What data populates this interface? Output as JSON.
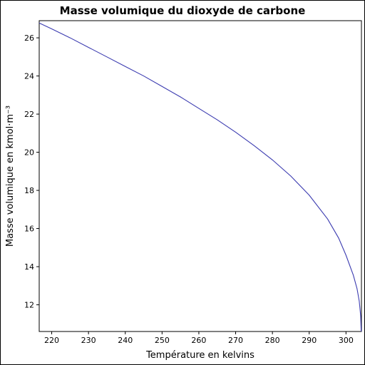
{
  "chart_data": {
    "type": "line",
    "title": "Masse volumique du dioxyde de carbone",
    "xlabel": "Température en kelvins",
    "ylabel": "Masse volumique en kmol·m⁻³",
    "xlim": [
      216.6,
      304.2
    ],
    "ylim": [
      10.6,
      26.9
    ],
    "x_ticks": [
      220,
      230,
      240,
      250,
      260,
      270,
      280,
      290,
      300
    ],
    "y_ticks": [
      12,
      14,
      16,
      18,
      20,
      22,
      24,
      26
    ],
    "grid": false,
    "line_color": "#3b3bb0",
    "series": [
      {
        "name": "",
        "x": [
          216.6,
          220,
          225,
          230,
          235,
          240,
          245,
          250,
          255,
          260,
          265,
          270,
          275,
          280,
          285,
          290,
          295,
          298,
          300,
          302,
          303,
          303.6,
          304.0,
          304.13
        ],
        "y": [
          26.78,
          26.47,
          26.0,
          25.5,
          25.0,
          24.5,
          24.0,
          23.45,
          22.9,
          22.3,
          21.7,
          21.05,
          20.35,
          19.6,
          18.75,
          17.75,
          16.5,
          15.5,
          14.6,
          13.55,
          12.85,
          12.2,
          11.4,
          10.6
        ]
      }
    ]
  }
}
